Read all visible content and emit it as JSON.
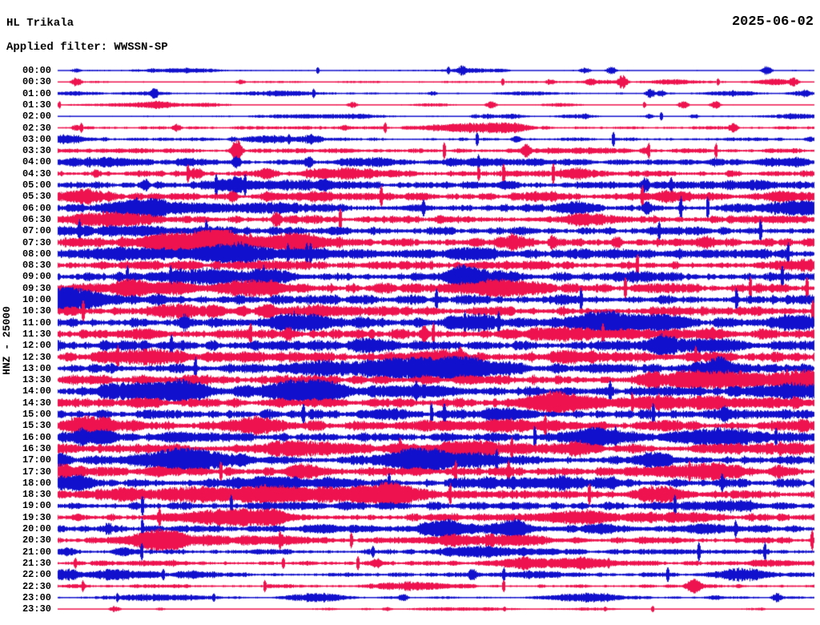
{
  "header": {
    "station": "HL Trikala",
    "date": "2025-06-02",
    "filter": "Applied filter: WWSSN-SP"
  },
  "axis": {
    "left_label": "HNZ - 25000"
  },
  "colors": {
    "trace_blue": "#1111cd",
    "trace_red": "#ee134e",
    "text": "#000000",
    "background": "#ffffff"
  },
  "chart_data": {
    "type": "line",
    "title": "24-hour helicorder seismogram, station HL Trikala, channel HNZ, scale 25000, WWSSN-SP filter, 2025-06-02",
    "row_duration_minutes": 30,
    "rows_per_day": 48,
    "trace_color_cycle": [
      "blue",
      "red"
    ],
    "legend_position": "none",
    "grid": false,
    "note": "amp = approximate half-amplitude of background noise in px; events = [x_px, half_amplitude_px] visible bursts",
    "rows": [
      {
        "time": "00:00",
        "color": "blue",
        "amp": 1.0,
        "events": [
          [
            95,
            3
          ],
          [
            190,
            3
          ],
          [
            577,
            7
          ],
          [
            730,
            4
          ],
          [
            763,
            5
          ],
          [
            957,
            6
          ]
        ]
      },
      {
        "time": "00:30",
        "color": "red",
        "amp": 1.4,
        "events": [
          [
            95,
            6
          ],
          [
            300,
            3
          ],
          [
            687,
            4
          ],
          [
            737,
            5
          ],
          [
            777,
            9
          ],
          [
            990,
            6
          ]
        ]
      },
      {
        "time": "01:00",
        "color": "blue",
        "amp": 1.4,
        "events": [
          [
            192,
            7
          ],
          [
            540,
            3
          ],
          [
            812,
            6
          ],
          [
            825,
            5
          ],
          [
            935,
            4
          ],
          [
            1005,
            5
          ]
        ]
      },
      {
        "time": "01:30",
        "color": "red",
        "amp": 0.8,
        "events": [
          [
            440,
            4
          ],
          [
            613,
            5
          ],
          [
            853,
            5
          ],
          [
            893,
            5
          ]
        ]
      },
      {
        "time": "02:00",
        "color": "blue",
        "amp": 1.1,
        "events": [
          [
            593,
            3
          ],
          [
            730,
            4
          ],
          [
            810,
            3
          ],
          [
            867,
            3
          ],
          [
            990,
            4
          ]
        ]
      },
      {
        "time": "02:30",
        "color": "red",
        "amp": 2.2,
        "events": [
          [
            95,
            4
          ],
          [
            220,
            5
          ],
          [
            430,
            4
          ],
          [
            915,
            6
          ]
        ]
      },
      {
        "time": "03:00",
        "color": "blue",
        "amp": 2.4,
        "events": [
          [
            130,
            3
          ],
          [
            290,
            4
          ],
          [
            645,
            5
          ],
          [
            1010,
            4
          ]
        ]
      },
      {
        "time": "03:30",
        "color": "red",
        "amp": 3.2,
        "events": [
          [
            295,
            16
          ],
          [
            657,
            10
          ],
          [
            805,
            5
          ]
        ]
      },
      {
        "time": "04:00",
        "color": "blue",
        "amp": 3.8,
        "events": [
          [
            295,
            8
          ],
          [
            385,
            8
          ]
        ]
      },
      {
        "time": "04:30",
        "color": "red",
        "amp": 4.2,
        "events": [
          [
            120,
            6
          ],
          [
            385,
            7
          ]
        ]
      },
      {
        "time": "05:00",
        "color": "blue",
        "amp": 5.0,
        "events": [
          [
            180,
            9
          ],
          [
            805,
            11
          ]
        ]
      },
      {
        "time": "05:30",
        "color": "red",
        "amp": 5.2,
        "events": [
          [
            290,
            9
          ]
        ]
      },
      {
        "time": "06:00",
        "color": "blue",
        "amp": 5.6,
        "events": [
          [
            808,
            9
          ]
        ]
      },
      {
        "time": "06:30",
        "color": "red",
        "amp": 5.6,
        "events": [
          [
            345,
            11
          ]
        ]
      },
      {
        "time": "07:00",
        "color": "blue",
        "amp": 6.0,
        "events": [
          [
            140,
            10
          ]
        ]
      },
      {
        "time": "07:30",
        "color": "red",
        "amp": 6.2,
        "events": [
          [
            690,
            10
          ],
          [
            770,
            9
          ]
        ]
      },
      {
        "time": "08:00",
        "color": "blue",
        "amp": 6.2,
        "events": []
      },
      {
        "time": "08:30",
        "color": "red",
        "amp": 6.4,
        "events": []
      },
      {
        "time": "09:00",
        "color": "blue",
        "amp": 6.4,
        "events": []
      },
      {
        "time": "09:30",
        "color": "red",
        "amp": 6.6,
        "events": []
      },
      {
        "time": "10:00",
        "color": "blue",
        "amp": 6.8,
        "events": []
      },
      {
        "time": "10:30",
        "color": "red",
        "amp": 6.8,
        "events": []
      },
      {
        "time": "11:00",
        "color": "blue",
        "amp": 7.0,
        "events": [
          [
            230,
            12
          ]
        ]
      },
      {
        "time": "11:30",
        "color": "red",
        "amp": 7.0,
        "events": [
          [
            530,
            11
          ]
        ]
      },
      {
        "time": "12:00",
        "color": "blue",
        "amp": 7.0,
        "events": []
      },
      {
        "time": "12:30",
        "color": "red",
        "amp": 7.0,
        "events": [
          [
            575,
            14
          ]
        ]
      },
      {
        "time": "13:00",
        "color": "blue",
        "amp": 6.8,
        "events": []
      },
      {
        "time": "13:30",
        "color": "red",
        "amp": 6.8,
        "events": []
      },
      {
        "time": "14:00",
        "color": "blue",
        "amp": 6.8,
        "events": []
      },
      {
        "time": "14:30",
        "color": "red",
        "amp": 6.6,
        "events": []
      },
      {
        "time": "15:00",
        "color": "blue",
        "amp": 6.6,
        "events": []
      },
      {
        "time": "15:30",
        "color": "red",
        "amp": 6.6,
        "events": []
      },
      {
        "time": "16:00",
        "color": "blue",
        "amp": 6.4,
        "events": []
      },
      {
        "time": "16:30",
        "color": "red",
        "amp": 6.4,
        "events": []
      },
      {
        "time": "17:00",
        "color": "blue",
        "amp": 6.2,
        "events": []
      },
      {
        "time": "17:30",
        "color": "red",
        "amp": 6.2,
        "events": [
          [
            100,
            10
          ]
        ]
      },
      {
        "time": "18:00",
        "color": "blue",
        "amp": 6.0,
        "events": [
          [
            640,
            10
          ]
        ]
      },
      {
        "time": "18:30",
        "color": "red",
        "amp": 5.8,
        "events": []
      },
      {
        "time": "19:00",
        "color": "blue",
        "amp": 5.6,
        "events": []
      },
      {
        "time": "19:30",
        "color": "red",
        "amp": 5.4,
        "events": []
      },
      {
        "time": "20:00",
        "color": "blue",
        "amp": 4.8,
        "events": [
          [
            135,
            9
          ]
        ]
      },
      {
        "time": "20:30",
        "color": "red",
        "amp": 4.2,
        "events": []
      },
      {
        "time": "21:00",
        "color": "blue",
        "amp": 3.6,
        "events": []
      },
      {
        "time": "21:30",
        "color": "red",
        "amp": 3.2,
        "events": [
          [
            470,
            7
          ]
        ]
      },
      {
        "time": "22:00",
        "color": "blue",
        "amp": 3.0,
        "events": [
          [
            590,
            8
          ]
        ]
      },
      {
        "time": "22:30",
        "color": "red",
        "amp": 2.6,
        "events": []
      },
      {
        "time": "23:00",
        "color": "blue",
        "amp": 1.8,
        "events": [
          [
            237,
            4
          ],
          [
            392,
            4
          ],
          [
            503,
            5
          ],
          [
            745,
            4
          ],
          [
            970,
            6
          ]
        ]
      },
      {
        "time": "23:30",
        "color": "red",
        "amp": 0.7,
        "events": [
          [
            143,
            4
          ],
          [
            200,
            2
          ],
          [
            413,
            2
          ],
          [
            483,
            3
          ],
          [
            950,
            2
          ]
        ]
      }
    ]
  }
}
